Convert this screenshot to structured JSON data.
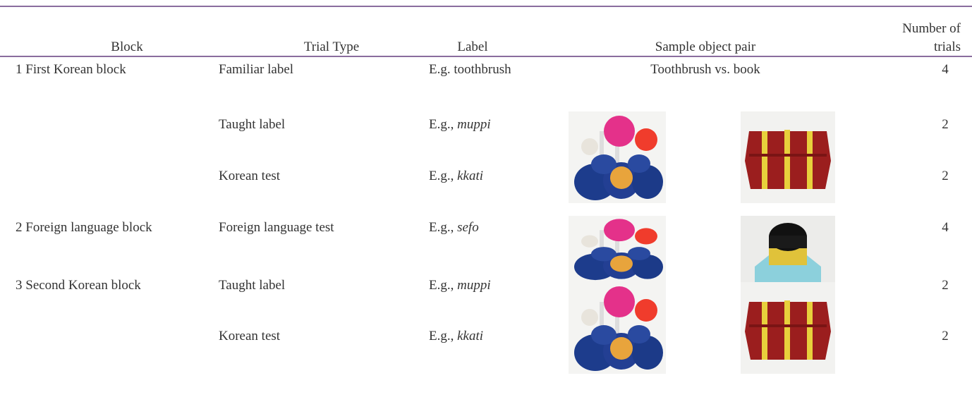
{
  "table": {
    "header": {
      "block": "Block",
      "trial_type": "Trial Type",
      "label": "Label",
      "sample": "Sample object pair",
      "trials": [
        "Number of",
        "trials"
      ]
    },
    "rows": [
      {
        "block": "1  First Korean block",
        "trial_type": "Familiar label",
        "label": "E.g. toothbrush",
        "sample": "Toothbrush vs. book",
        "trials": "4"
      },
      {
        "block": "",
        "trial_type": "Taught label",
        "label_prefix": "E.g.,",
        "label_term": "muppi",
        "trials": "2"
      },
      {
        "block": "",
        "trial_type": "Korean test",
        "label_prefix": "E.g.,",
        "label_term": "kkati",
        "trials": "2"
      },
      {
        "block": "2  Foreign language block",
        "trial_type": "Foreign language test",
        "label_prefix": "E.g.,",
        "label_term": "sefo",
        "trials": "4"
      },
      {
        "block": "3  Second Korean block",
        "trial_type": "Taught label",
        "label_prefix": "E.g.,",
        "label_term": "muppi",
        "trials": "2"
      },
      {
        "block": "",
        "trial_type": "Korean test",
        "label_prefix": "E.g.,",
        "label_term": "kkati",
        "trials": "2"
      }
    ]
  }
}
